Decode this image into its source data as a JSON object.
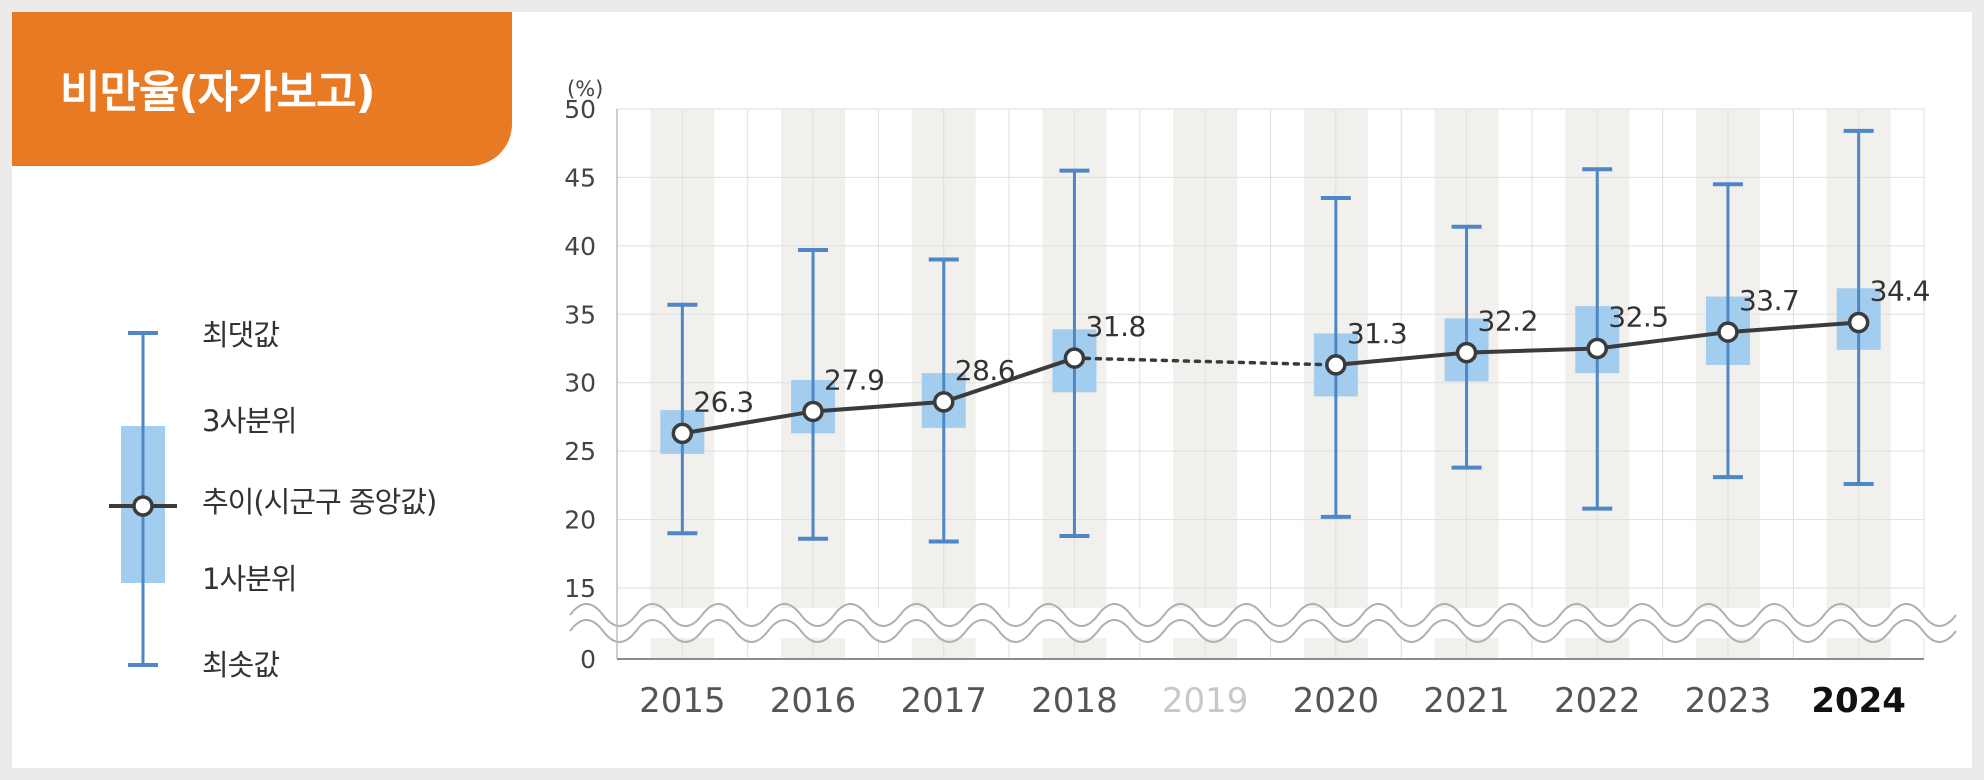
{
  "title": "비만율(자가보고)",
  "colors": {
    "accent": "#e87a24",
    "box": "#a3cdee",
    "whisker": "#4f86c6",
    "trend_line": "#3b3b3b",
    "band": "#f1f0ec",
    "year_faded": "#c8c8c8",
    "year_normal": "#555555",
    "year_current": "#111111"
  },
  "legend": {
    "max": "최댓값",
    "q3": "3사분위",
    "trend": "추이(시군구 중앙값)",
    "q1": "1사분위",
    "min": "최솟값"
  },
  "chart_data": {
    "type": "boxplot-trend",
    "y_unit": "(%)",
    "y_ticks": [
      0,
      15,
      20,
      25,
      30,
      35,
      40,
      45,
      50
    ],
    "y_axis_break": [
      0,
      15
    ],
    "categories": [
      "2015",
      "2016",
      "2017",
      "2018",
      "2019",
      "2020",
      "2021",
      "2022",
      "2023",
      "2024"
    ],
    "median": [
      26.3,
      27.9,
      28.6,
      31.8,
      null,
      31.3,
      32.2,
      32.5,
      33.7,
      34.4
    ],
    "median_labels": [
      "26.3",
      "27.9",
      "28.6",
      "31.8",
      "",
      "31.3",
      "32.2",
      "32.5",
      "33.7",
      "34.4"
    ],
    "q1": [
      24.8,
      26.3,
      26.7,
      29.3,
      null,
      29.0,
      30.1,
      30.7,
      31.3,
      32.4
    ],
    "q3": [
      28.0,
      30.2,
      30.7,
      33.9,
      null,
      33.6,
      34.7,
      35.6,
      36.3,
      36.9
    ],
    "min": [
      19.0,
      18.6,
      18.4,
      18.8,
      null,
      20.2,
      23.8,
      20.8,
      23.1,
      22.6
    ],
    "max": [
      35.7,
      39.7,
      39.0,
      45.5,
      null,
      43.5,
      41.4,
      45.6,
      44.5,
      48.4
    ],
    "gap_connector": {
      "from": "2018",
      "to": "2020",
      "style": "dotted"
    },
    "highlight_category": "2024",
    "faded_category": "2019",
    "grid": true
  }
}
